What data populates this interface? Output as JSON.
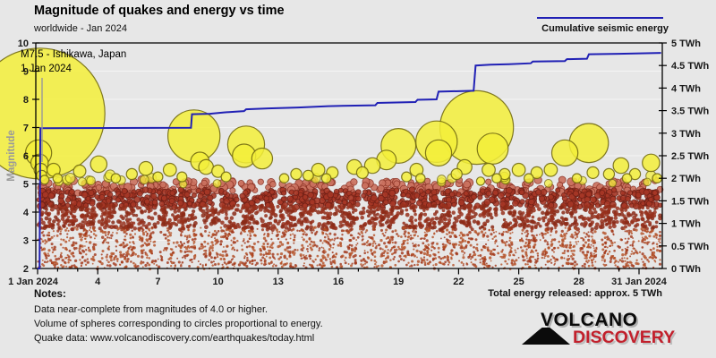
{
  "header": {
    "title": "Magnitude of quakes and energy vs time",
    "subtitle": "worldwide - Jan 2024"
  },
  "legend": {
    "label": "Cumulative seismic energy"
  },
  "annotation": {
    "line1": "M7.5 - Ishikawa, Japan",
    "line2": "1 Jan 2024"
  },
  "notes": {
    "heading": "Notes:",
    "lines": [
      "Data near-complete from magnitudes of 4.0 or higher.",
      "Volume of spheres corresponding to circles proportional to energy.",
      "Quake data: www.volcanodiscovery.com/earthquakes/today.html"
    ]
  },
  "total_energy": "Total energy released: approx. 5 TWh",
  "logo": {
    "word1": "VOLCANO",
    "word2": "DISCOVERY"
  },
  "colors": {
    "background": "#e7e7e7",
    "grid": "#f4f4f4",
    "axis": "#000000",
    "energy_line": "#2121b5",
    "bubble_fill": "rgba(243,238,58,0.85)",
    "bubble_stroke": "rgba(115,108,18,0.9)",
    "muted_text": "#9a9a9a",
    "tick_text": "#1a1a1a",
    "logo_red": "#c2202c",
    "leader_line": "#999999"
  },
  "chart_data": {
    "type": "scatter",
    "title": "Magnitude of quakes and energy vs time",
    "subtitle": "worldwide - Jan 2024",
    "x_axis": {
      "unit": "day of Jan 2024",
      "range_days": [
        1,
        32.2
      ],
      "minor_tick_every_days": 1,
      "ticks": [
        {
          "day": 1,
          "label": "1 Jan 2024"
        },
        {
          "day": 4,
          "label": "4"
        },
        {
          "day": 7,
          "label": "7"
        },
        {
          "day": 10,
          "label": "10"
        },
        {
          "day": 13,
          "label": "13"
        },
        {
          "day": 16,
          "label": "16"
        },
        {
          "day": 19,
          "label": "19"
        },
        {
          "day": 22,
          "label": "22"
        },
        {
          "day": 25,
          "label": "25"
        },
        {
          "day": 28,
          "label": "28"
        },
        {
          "day": 31,
          "label": "31 Jan 2024"
        }
      ]
    },
    "y_left": {
      "title": "Magnitude",
      "range": [
        2,
        10
      ],
      "ticks": [
        2,
        3,
        4,
        5,
        6,
        7,
        8,
        9,
        10
      ],
      "gridlines_at": [
        3,
        4,
        5,
        6,
        7,
        8,
        9
      ]
    },
    "y_right": {
      "title": "Cumulative seismic energy",
      "range_TWh": [
        0,
        5
      ],
      "ticks": [
        {
          "value": 5,
          "label": "5 TWh"
        },
        {
          "value": 4.5,
          "label": "4.5 TWh"
        },
        {
          "value": 4,
          "label": "4 TWh"
        },
        {
          "value": 3.5,
          "label": "3.5 TWh"
        },
        {
          "value": 3,
          "label": "3 TWh"
        },
        {
          "value": 2.5,
          "label": "2.5 TWh"
        },
        {
          "value": 2,
          "label": "2 TWh"
        },
        {
          "value": 1.5,
          "label": "1.5 TWh"
        },
        {
          "value": 1,
          "label": "1 TWh"
        },
        {
          "value": 0.5,
          "label": "0.5 TWh"
        },
        {
          "value": 0,
          "label": "0 TWh"
        }
      ]
    },
    "cumulative_energy_TWh": [
      [
        1.0,
        0
      ],
      [
        1.1,
        0
      ],
      [
        1.14,
        3.11
      ],
      [
        8.65,
        3.12
      ],
      [
        8.7,
        3.42
      ],
      [
        9.6,
        3.43
      ],
      [
        10.3,
        3.46
      ],
      [
        11.3,
        3.49
      ],
      [
        11.4,
        3.53
      ],
      [
        12.5,
        3.55
      ],
      [
        14.0,
        3.57
      ],
      [
        15.5,
        3.6
      ],
      [
        16.5,
        3.61
      ],
      [
        17.85,
        3.62
      ],
      [
        17.95,
        3.67
      ],
      [
        19.85,
        3.69
      ],
      [
        19.95,
        3.74
      ],
      [
        20.9,
        3.75
      ],
      [
        21.0,
        3.92
      ],
      [
        22.75,
        3.94
      ],
      [
        22.85,
        4.5
      ],
      [
        23.6,
        4.52
      ],
      [
        24.5,
        4.53
      ],
      [
        25.6,
        4.55
      ],
      [
        25.7,
        4.59
      ],
      [
        27.3,
        4.6
      ],
      [
        27.4,
        4.64
      ],
      [
        28.4,
        4.65
      ],
      [
        28.5,
        4.75
      ],
      [
        30.0,
        4.76
      ],
      [
        32.1,
        4.78
      ]
    ],
    "bubble_radius_rule": "r_px = 73 * 10^(0.5*(mag-7.5)) ; sphere volume proportional to seismic energy",
    "major_quakes": [
      {
        "day": 1.1,
        "mag": 7.5,
        "label": "M7.5 - Ishikawa, Japan"
      },
      {
        "day": 1.05,
        "mag": 6.1
      },
      {
        "day": 1.1,
        "mag": 5.75
      },
      {
        "day": 1.15,
        "mag": 5.5
      },
      {
        "day": 1.2,
        "mag": 5.3
      },
      {
        "day": 1.35,
        "mag": 5.15
      },
      {
        "day": 1.8,
        "mag": 5.5
      },
      {
        "day": 2.0,
        "mag": 5.2
      },
      {
        "day": 3.1,
        "mag": 5.45
      },
      {
        "day": 4.05,
        "mag": 5.7
      },
      {
        "day": 4.9,
        "mag": 5.2
      },
      {
        "day": 5.7,
        "mag": 5.35
      },
      {
        "day": 6.4,
        "mag": 5.55
      },
      {
        "day": 7.0,
        "mag": 5.25
      },
      {
        "day": 7.6,
        "mag": 5.5
      },
      {
        "day": 8.2,
        "mag": 5.25
      },
      {
        "day": 8.8,
        "mag": 6.7
      },
      {
        "day": 9.1,
        "mag": 5.8
      },
      {
        "day": 9.4,
        "mag": 5.6
      },
      {
        "day": 10.0,
        "mag": 5.45
      },
      {
        "day": 10.4,
        "mag": 5.25
      },
      {
        "day": 11.3,
        "mag": 6.0
      },
      {
        "day": 11.4,
        "mag": 6.4
      },
      {
        "day": 12.2,
        "mag": 5.9
      },
      {
        "day": 13.3,
        "mag": 5.2
      },
      {
        "day": 13.9,
        "mag": 5.35
      },
      {
        "day": 14.5,
        "mag": 5.3
      },
      {
        "day": 15.0,
        "mag": 5.5
      },
      {
        "day": 15.4,
        "mag": 5.2
      },
      {
        "day": 15.7,
        "mag": 5.4
      },
      {
        "day": 16.8,
        "mag": 5.6
      },
      {
        "day": 17.2,
        "mag": 5.4
      },
      {
        "day": 17.7,
        "mag": 5.65
      },
      {
        "day": 18.4,
        "mag": 5.85
      },
      {
        "day": 19.0,
        "mag": 6.35
      },
      {
        "day": 19.4,
        "mag": 5.25
      },
      {
        "day": 19.9,
        "mag": 5.5
      },
      {
        "day": 20.1,
        "mag": 5.2
      },
      {
        "day": 20.9,
        "mag": 6.5
      },
      {
        "day": 21.0,
        "mag": 6.1
      },
      {
        "day": 21.9,
        "mag": 5.35
      },
      {
        "day": 22.3,
        "mag": 5.6
      },
      {
        "day": 22.9,
        "mag": 7.0
      },
      {
        "day": 23.1,
        "mag": 5.1
      },
      {
        "day": 23.5,
        "mag": 5.5
      },
      {
        "day": 23.7,
        "mag": 6.25
      },
      {
        "day": 23.9,
        "mag": 5.2
      },
      {
        "day": 24.3,
        "mag": 5.35
      },
      {
        "day": 25.0,
        "mag": 5.5
      },
      {
        "day": 25.5,
        "mag": 5.2
      },
      {
        "day": 25.9,
        "mag": 5.4
      },
      {
        "day": 26.6,
        "mag": 5.5
      },
      {
        "day": 27.3,
        "mag": 6.1
      },
      {
        "day": 27.9,
        "mag": 5.2
      },
      {
        "day": 28.5,
        "mag": 6.45
      },
      {
        "day": 28.7,
        "mag": 5.4
      },
      {
        "day": 29.5,
        "mag": 5.35
      },
      {
        "day": 30.1,
        "mag": 5.65
      },
      {
        "day": 30.4,
        "mag": 5.2
      },
      {
        "day": 30.8,
        "mag": 5.35
      },
      {
        "day": 31.6,
        "mag": 5.75
      },
      {
        "day": 31.9,
        "mag": 5.2
      }
    ],
    "background_scatter": {
      "description": "thousands of smaller worldwide quakes M2-5.1, synthesized deterministically",
      "bands": [
        {
          "n": 270,
          "mag_min": 4.72,
          "mag_max": 5.12,
          "r_min": 3.0,
          "r_max": 4.5,
          "fill": "#cb7260",
          "stroke": "#8e3527",
          "opacity": 0.92,
          "seed": 11
        },
        {
          "n": 820,
          "mag_min": 4.2,
          "mag_max": 4.76,
          "r_min": 2.4,
          "r_max": 3.5,
          "fill": "#a73726",
          "stroke": "#6f2016",
          "opacity": 0.9,
          "seed": 22
        },
        {
          "n": 1250,
          "mag_min": 3.4,
          "mag_max": 4.22,
          "r_min": 1.7,
          "r_max": 2.5,
          "fill": "#96301c",
          "fill2": "#8a2a18",
          "stroke": "",
          "opacity": 0.85,
          "seed": 33
        },
        {
          "n": 2100,
          "mag_min": 2.02,
          "mag_max": 3.42,
          "r_min": 0.9,
          "r_max": 1.7,
          "fill": "#b44f24",
          "fill2": "#a03418",
          "stroke": "",
          "opacity": 0.8,
          "seed": 44
        },
        {
          "n": 26,
          "mag_min": 5.0,
          "mag_max": 5.32,
          "r_min": 0,
          "r_max": 0,
          "fill": "yellow-band",
          "stroke": "",
          "opacity": 0.85,
          "seed": 55
        }
      ]
    }
  }
}
